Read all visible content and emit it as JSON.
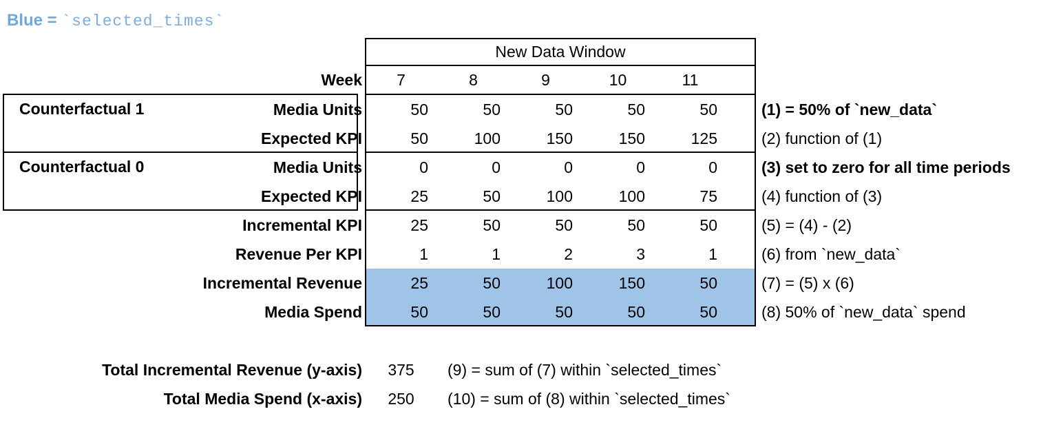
{
  "legend": {
    "prefix": "Blue = ",
    "code": "`selected_times`"
  },
  "table": {
    "header": "New Data Window",
    "week_label": "Week",
    "weeks": [
      "7",
      "8",
      "9",
      "10",
      "11"
    ],
    "groups": [
      {
        "label": "Counterfactual 1"
      },
      {
        "label": "Counterfactual 0"
      }
    ],
    "rows": [
      {
        "label": "Media Units",
        "values": [
          "50",
          "50",
          "50",
          "50",
          "50"
        ],
        "annotation": "(1) = 50% of `new_data`"
      },
      {
        "label": "Expected KPI",
        "values": [
          "50",
          "100",
          "150",
          "150",
          "125"
        ],
        "annotation": "(2) function of (1)"
      },
      {
        "label": "Media Units",
        "values": [
          "0",
          "0",
          "0",
          "0",
          "0"
        ],
        "annotation": "(3) set to zero for all time periods"
      },
      {
        "label": "Expected KPI",
        "values": [
          "25",
          "50",
          "100",
          "100",
          "75"
        ],
        "annotation": "(4) function of (3)"
      },
      {
        "label": "Incremental KPI",
        "values": [
          "25",
          "50",
          "50",
          "50",
          "50"
        ],
        "annotation": "(5) = (4) - (2)"
      },
      {
        "label": "Revenue Per KPI",
        "values": [
          "1",
          "1",
          "2",
          "3",
          "1"
        ],
        "annotation": "(6) from `new_data`"
      },
      {
        "label": "Incremental Revenue",
        "values": [
          "25",
          "50",
          "100",
          "150",
          "50"
        ],
        "annotation": "(7) = (5) x (6)"
      },
      {
        "label": "Media Spend",
        "values": [
          "50",
          "50",
          "50",
          "50",
          "50"
        ],
        "annotation": "(8) 50% of `new_data` spend"
      }
    ]
  },
  "totals": [
    {
      "label": "Total Incremental Revenue (y-axis)",
      "value": "375",
      "annotation": "(9) = sum of (7) within `selected_times`"
    },
    {
      "label": "Total Media Spend (x-axis)",
      "value": "250",
      "annotation": "(10) = sum of (8) within `selected_times`"
    }
  ],
  "colors": {
    "highlight-blue": "#A0C3E8",
    "legend-blue": "#6FA8DC",
    "legend-blue-mono": "#7FAEDE"
  }
}
